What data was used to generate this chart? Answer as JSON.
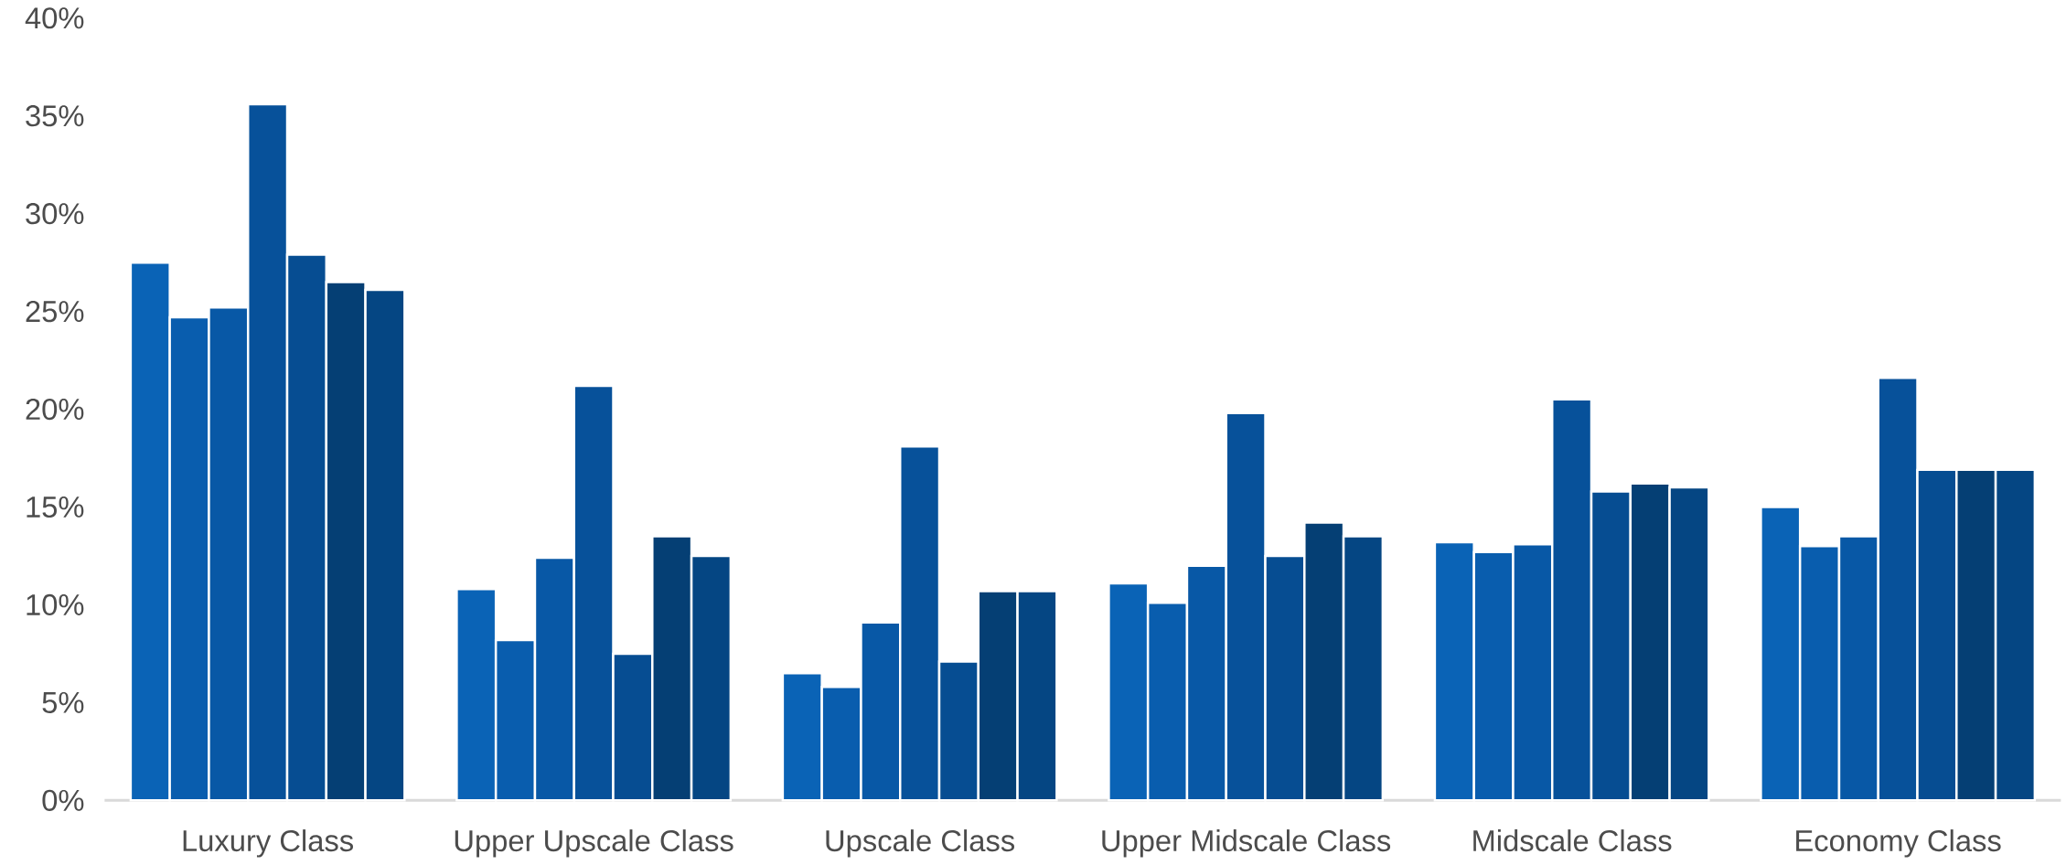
{
  "chart_data": {
    "type": "bar",
    "categories": [
      "Luxury Class",
      "Upper Upscale Class",
      "Upscale Class",
      "Upper Midscale Class",
      "Midscale Class",
      "Economy Class"
    ],
    "series": [
      {
        "color": "#0a63b6",
        "values": [
          27.5,
          10.8,
          6.5,
          11.1,
          13.2,
          15.0
        ]
      },
      {
        "color": "#095dae",
        "values": [
          24.7,
          8.2,
          5.8,
          10.1,
          12.7,
          13.0
        ]
      },
      {
        "color": "#0858a6",
        "values": [
          25.2,
          12.4,
          9.1,
          12.0,
          13.1,
          13.5
        ]
      },
      {
        "color": "#07519a",
        "values": [
          35.6,
          21.2,
          18.1,
          19.8,
          20.5,
          21.6
        ]
      },
      {
        "color": "#064d92",
        "values": [
          27.9,
          7.5,
          7.1,
          12.5,
          15.8,
          16.9
        ]
      },
      {
        "color": "#053f74",
        "values": [
          26.5,
          13.5,
          10.7,
          14.2,
          16.2,
          16.9
        ]
      },
      {
        "color": "#054683",
        "values": [
          26.1,
          12.5,
          10.7,
          13.5,
          16.0,
          16.9
        ]
      }
    ],
    "ylim": [
      0,
      40
    ],
    "yticks": [
      {
        "value": 0,
        "label": "0%"
      },
      {
        "value": 5,
        "label": "5%"
      },
      {
        "value": 10,
        "label": "10%"
      },
      {
        "value": 15,
        "label": "15%"
      },
      {
        "value": 20,
        "label": "20%"
      },
      {
        "value": 25,
        "label": "25%"
      },
      {
        "value": 30,
        "label": "30%"
      },
      {
        "value": 35,
        "label": "35%"
      },
      {
        "value": 40,
        "label": "40%"
      }
    ]
  }
}
